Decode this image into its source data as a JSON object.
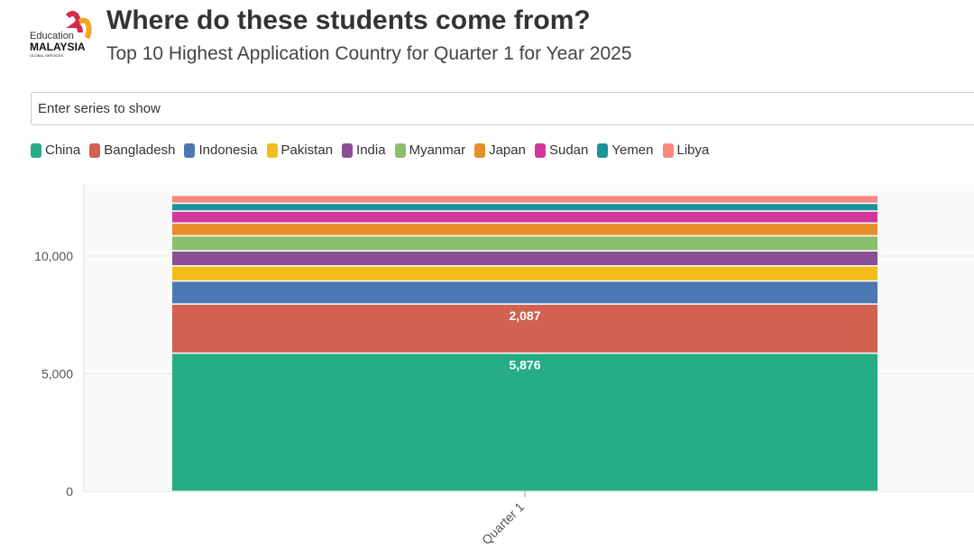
{
  "header": {
    "title": "Where do these students come from?",
    "subtitle": "Top 10 Highest Application Country for Quarter 1 for Year 2025",
    "logo_text": [
      "Education",
      "MALAYSIA",
      "GLOBAL SERVICES"
    ]
  },
  "filter": {
    "placeholder": "Enter series to show"
  },
  "chart_data": {
    "type": "bar",
    "stacked": true,
    "categories": [
      "Quarter 1"
    ],
    "series": [
      {
        "name": "China",
        "values": [
          5876
        ],
        "color": "#26ad85",
        "label": "5,876"
      },
      {
        "name": "Bangladesh",
        "values": [
          2087
        ],
        "color": "#d16150",
        "label": "2,087"
      },
      {
        "name": "Indonesia",
        "values": [
          980
        ],
        "color": "#4b78b3"
      },
      {
        "name": "Pakistan",
        "values": [
          640
        ],
        "color": "#f2bc1a"
      },
      {
        "name": "India",
        "values": [
          640
        ],
        "color": "#8a4f95"
      },
      {
        "name": "Myanmar",
        "values": [
          640
        ],
        "color": "#8cbf6b"
      },
      {
        "name": "Japan",
        "values": [
          540
        ],
        "color": "#e68e2a"
      },
      {
        "name": "Sudan",
        "values": [
          510
        ],
        "color": "#d3359a"
      },
      {
        "name": "Yemen",
        "values": [
          330
        ],
        "color": "#1a9399"
      },
      {
        "name": "Libya",
        "values": [
          340
        ],
        "color": "#f88880"
      }
    ],
    "yticks": [
      {
        "v": 0,
        "label": "0"
      },
      {
        "v": 5000,
        "label": "5,000"
      },
      {
        "v": 10000,
        "label": "10,000"
      }
    ],
    "ylim": [
      0,
      13000
    ],
    "grid": true,
    "legend": "top-left"
  }
}
